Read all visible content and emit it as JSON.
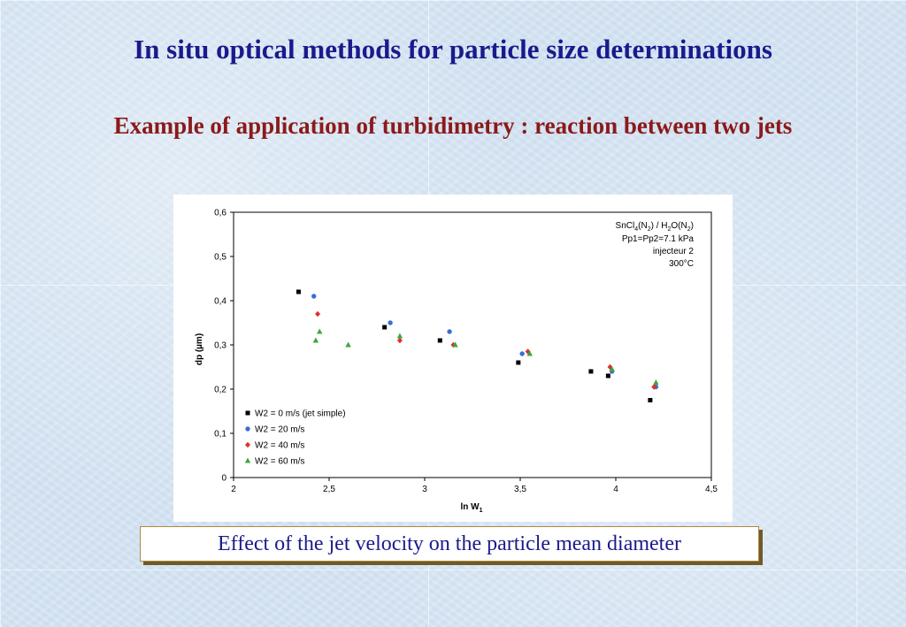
{
  "slide": {
    "title": "In situ optical methods for particle size determinations",
    "subtitle": "Example of application of turbidimetry : reaction between two jets",
    "caption": "Effect of the jet velocity on the particle mean diameter"
  },
  "colors": {
    "title": "#1a1a8c",
    "subtitle": "#8b1a1a",
    "caption_text": "#1a1a8c",
    "series_w0": "#000000",
    "series_w20": "#3a6fd8",
    "series_w40": "#e03030",
    "series_w60": "#3aa83a"
  },
  "chart_data": {
    "type": "scatter",
    "xlabel": "ln W",
    "xlabel_sub": "1",
    "ylabel": "dp (µm)",
    "xlim": [
      2,
      4.5
    ],
    "ylim": [
      0,
      0.6
    ],
    "xticks": [
      "2",
      "2,5",
      "3",
      "3,5",
      "4",
      "4,5"
    ],
    "yticks": [
      "0",
      "0,1",
      "0,2",
      "0,3",
      "0,4",
      "0,5",
      "0,6"
    ],
    "grid": false,
    "legend_position": "bottom-left",
    "annotation": {
      "line1_pre": "SnCl",
      "line1_sub1": "4",
      "line1_mid": "(N",
      "line1_sub2": "2",
      "line1_mid2": ") / H",
      "line1_sub3": "2",
      "line1_mid3": "O(N",
      "line1_sub4": "2",
      "line1_end": ")",
      "line2": "Pp1=Pp2=7.1 kPa",
      "line3": "injecteur 2",
      "line4": "300°C"
    },
    "series": [
      {
        "name": "W2 = 0 m/s (jet simple)",
        "marker": "square",
        "color": "#000000",
        "points": [
          [
            2.34,
            0.42
          ],
          [
            2.79,
            0.34
          ],
          [
            3.08,
            0.31
          ],
          [
            3.49,
            0.26
          ],
          [
            3.87,
            0.24
          ],
          [
            3.96,
            0.23
          ],
          [
            4.18,
            0.175
          ]
        ]
      },
      {
        "name": "W2 = 20 m/s",
        "marker": "circle",
        "color": "#3a6fd8",
        "points": [
          [
            2.42,
            0.41
          ],
          [
            2.82,
            0.35
          ],
          [
            3.13,
            0.33
          ],
          [
            3.51,
            0.28
          ],
          [
            3.98,
            0.24
          ],
          [
            4.21,
            0.205
          ]
        ]
      },
      {
        "name": "W2 = 40 m/s",
        "marker": "diamond",
        "color": "#e03030",
        "points": [
          [
            2.44,
            0.37
          ],
          [
            2.87,
            0.31
          ],
          [
            3.15,
            0.3
          ],
          [
            3.54,
            0.285
          ],
          [
            3.97,
            0.25
          ],
          [
            4.2,
            0.205
          ]
        ]
      },
      {
        "name": "W2 = 60 m/s",
        "marker": "triangle",
        "color": "#3aa83a",
        "points": [
          [
            2.43,
            0.31
          ],
          [
            2.45,
            0.33
          ],
          [
            2.6,
            0.3
          ],
          [
            2.87,
            0.32
          ],
          [
            3.16,
            0.3
          ],
          [
            3.55,
            0.28
          ],
          [
            3.98,
            0.245
          ],
          [
            4.21,
            0.215
          ]
        ]
      }
    ]
  }
}
